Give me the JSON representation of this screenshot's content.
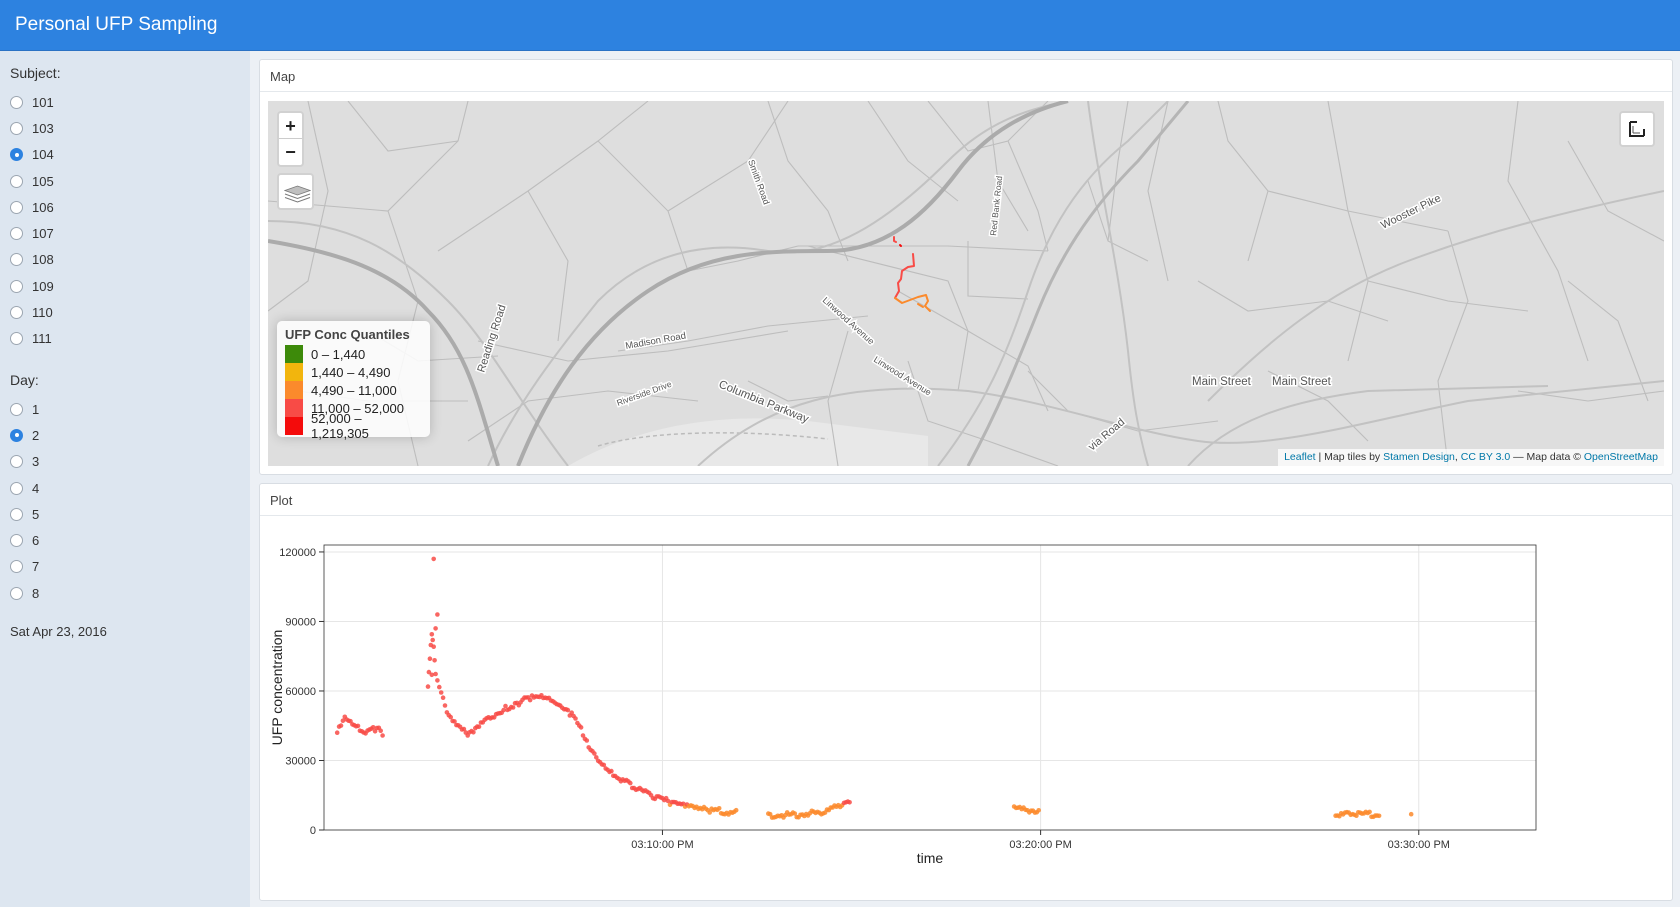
{
  "header": {
    "title": "Personal UFP Sampling"
  },
  "sidebar": {
    "subject_label": "Subject:",
    "subjects": [
      {
        "label": "101",
        "checked": false
      },
      {
        "label": "103",
        "checked": false
      },
      {
        "label": "104",
        "checked": true
      },
      {
        "label": "105",
        "checked": false
      },
      {
        "label": "106",
        "checked": false
      },
      {
        "label": "107",
        "checked": false
      },
      {
        "label": "108",
        "checked": false
      },
      {
        "label": "109",
        "checked": false
      },
      {
        "label": "110",
        "checked": false
      },
      {
        "label": "111",
        "checked": false
      }
    ],
    "day_label": "Day:",
    "days": [
      {
        "label": "1",
        "checked": false
      },
      {
        "label": "2",
        "checked": true
      },
      {
        "label": "3",
        "checked": false
      },
      {
        "label": "4",
        "checked": false
      },
      {
        "label": "5",
        "checked": false
      },
      {
        "label": "6",
        "checked": false
      },
      {
        "label": "7",
        "checked": false
      },
      {
        "label": "8",
        "checked": false
      }
    ],
    "date_text": "Sat Apr 23, 2016"
  },
  "map_panel": {
    "title": "Map",
    "zoom_in": "+",
    "zoom_out": "−",
    "street_labels": {
      "smith": "Smith Road",
      "red_bank": "Red Bank Road",
      "wooster": "Wooster Pike",
      "reading": "Reading Road",
      "madison": "Madison Road",
      "linwood1": "Linwood Avenue",
      "linwood2": "Linwood Avenue",
      "riverside": "Riverside Drive",
      "columbia": "Columbia Parkway",
      "main1": "Main Street",
      "main2": "Main Street",
      "via": "via Road"
    },
    "legend": {
      "title": "UFP Conc Quantiles",
      "items": [
        {
          "label": "0 – 1,440",
          "color": "#3d8a0a"
        },
        {
          "label": "1,440 – 4,490",
          "color": "#f2b50d"
        },
        {
          "label": "4,490 – 11,000",
          "color": "#fb8a2c"
        },
        {
          "label": "11,000 – 52,000",
          "color": "#f84b46"
        },
        {
          "label": "52,000 – 1,219,305",
          "color": "#f40b0b"
        }
      ]
    },
    "attribution": {
      "leaflet": "Leaflet",
      "tiles_prefix": " | Map tiles by ",
      "stamen": "Stamen Design",
      "sep": ", ",
      "license": "CC BY 3.0",
      "data_prefix": " — Map data © ",
      "osm": "OpenStreetMap"
    }
  },
  "plot_panel": {
    "title": "Plot",
    "chart_data": {
      "type": "scatter",
      "xlabel": "time",
      "ylabel": "UFP concentration",
      "x_ticks": [
        "03:10:00 PM",
        "03:20:00 PM",
        "03:30:00 PM"
      ],
      "x_tick_minutes": [
        10,
        20,
        30
      ],
      "xlim_minutes": [
        1.05,
        33.1
      ],
      "y_ticks": [
        0,
        30000,
        60000,
        90000,
        120000
      ],
      "ylim": [
        0,
        123000
      ],
      "grid": true,
      "anchor_points": [
        [
          1.4,
          42000
        ],
        [
          1.6,
          48000
        ],
        [
          1.75,
          46000
        ],
        [
          2.2,
          42000
        ],
        [
          2.45,
          44000
        ],
        [
          2.65,
          41000
        ],
        [
          3.8,
          62000
        ],
        [
          3.85,
          75000
        ],
        [
          3.9,
          85000
        ],
        [
          3.95,
          80000
        ],
        [
          4.0,
          68000
        ],
        [
          4.1,
          62000
        ],
        [
          4.2,
          56000
        ],
        [
          4.3,
          50000
        ],
        [
          4.5,
          46000
        ],
        [
          4.7,
          43000
        ],
        [
          4.9,
          41000
        ],
        [
          5.1,
          45000
        ],
        [
          5.3,
          48000
        ],
        [
          5.6,
          50000
        ],
        [
          5.9,
          53000
        ],
        [
          6.2,
          55000
        ],
        [
          6.5,
          57000
        ],
        [
          6.8,
          57000
        ],
        [
          7.0,
          56000
        ],
        [
          7.3,
          53000
        ],
        [
          7.6,
          50000
        ],
        [
          7.8,
          45000
        ],
        [
          8.0,
          38000
        ],
        [
          8.3,
          31000
        ],
        [
          8.7,
          24000
        ],
        [
          9.2,
          19000
        ],
        [
          9.7,
          15000
        ],
        [
          10.2,
          12000
        ],
        [
          10.6,
          10000
        ],
        [
          10.9,
          9000
        ],
        [
          11.3,
          8500
        ],
        [
          12.0,
          7500
        ],
        [
          12.8,
          6500
        ],
        [
          13.5,
          6500
        ],
        [
          14.2,
          7500
        ],
        [
          14.5,
          10500
        ],
        [
          15.0,
          11500
        ],
        [
          16.0,
          11000
        ],
        [
          17.0,
          10500
        ],
        [
          18.0,
          10000
        ],
        [
          19.3,
          9200
        ],
        [
          20.0,
          8500
        ],
        [
          21.0,
          8200
        ],
        [
          22.0,
          7800
        ],
        [
          23.0,
          7500
        ],
        [
          24.0,
          7300
        ],
        [
          25.0,
          7200
        ],
        [
          26.0,
          6900
        ],
        [
          27.8,
          6400
        ],
        [
          28.3,
          6600
        ],
        [
          29.0,
          6700
        ],
        [
          29.8,
          6800
        ]
      ],
      "outliers": [
        [
          3.95,
          117000
        ],
        [
          4.05,
          93000
        ],
        [
          4.0,
          87000
        ],
        [
          3.9,
          67000
        ]
      ],
      "point_color_low": "#fb8a2c",
      "point_color_high": "#f84b46"
    }
  }
}
